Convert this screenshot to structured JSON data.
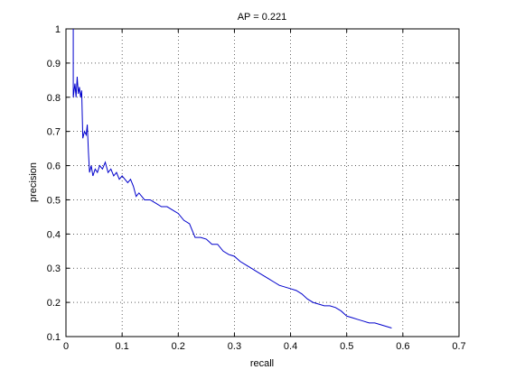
{
  "chart_data": {
    "type": "line",
    "title": "AP = 0.221",
    "x_label": "recall",
    "y_label": "precision",
    "x": [
      0.013,
      0.013,
      0.016,
      0.018,
      0.02,
      0.022,
      0.024,
      0.026,
      0.028,
      0.03,
      0.033,
      0.036,
      0.038,
      0.04,
      0.042,
      0.045,
      0.048,
      0.052,
      0.056,
      0.06,
      0.065,
      0.07,
      0.075,
      0.08,
      0.085,
      0.09,
      0.095,
      0.1,
      0.105,
      0.11,
      0.115,
      0.12,
      0.125,
      0.13,
      0.14,
      0.15,
      0.16,
      0.17,
      0.18,
      0.19,
      0.2,
      0.21,
      0.22,
      0.23,
      0.24,
      0.25,
      0.26,
      0.27,
      0.28,
      0.29,
      0.3,
      0.31,
      0.32,
      0.33,
      0.34,
      0.35,
      0.36,
      0.37,
      0.38,
      0.39,
      0.4,
      0.41,
      0.42,
      0.43,
      0.44,
      0.45,
      0.46,
      0.47,
      0.48,
      0.49,
      0.5,
      0.51,
      0.52,
      0.53,
      0.54,
      0.55,
      0.56,
      0.57,
      0.58
    ],
    "values": [
      1.0,
      0.8,
      0.84,
      0.8,
      0.86,
      0.81,
      0.83,
      0.8,
      0.82,
      0.68,
      0.7,
      0.69,
      0.72,
      0.64,
      0.58,
      0.6,
      0.57,
      0.59,
      0.58,
      0.6,
      0.59,
      0.61,
      0.58,
      0.59,
      0.57,
      0.58,
      0.56,
      0.57,
      0.56,
      0.55,
      0.56,
      0.54,
      0.51,
      0.52,
      0.5,
      0.5,
      0.49,
      0.48,
      0.48,
      0.47,
      0.46,
      0.44,
      0.43,
      0.39,
      0.39,
      0.385,
      0.37,
      0.37,
      0.35,
      0.34,
      0.335,
      0.32,
      0.31,
      0.3,
      0.29,
      0.28,
      0.27,
      0.26,
      0.25,
      0.245,
      0.24,
      0.235,
      0.225,
      0.21,
      0.2,
      0.195,
      0.19,
      0.19,
      0.185,
      0.175,
      0.16,
      0.155,
      0.15,
      0.145,
      0.14,
      0.14,
      0.135,
      0.13,
      0.125
    ],
    "color": "#0000cc",
    "xlim": [
      0,
      0.7
    ],
    "xticks": [
      0,
      0.1,
      0.2,
      0.3,
      0.4,
      0.5,
      0.6,
      0.7
    ],
    "ylim": [
      0.1,
      1
    ],
    "yticks": [
      0.1,
      0.2,
      0.3,
      0.4,
      0.5,
      0.6,
      0.7,
      0.8,
      0.9,
      1
    ],
    "grid": true
  }
}
